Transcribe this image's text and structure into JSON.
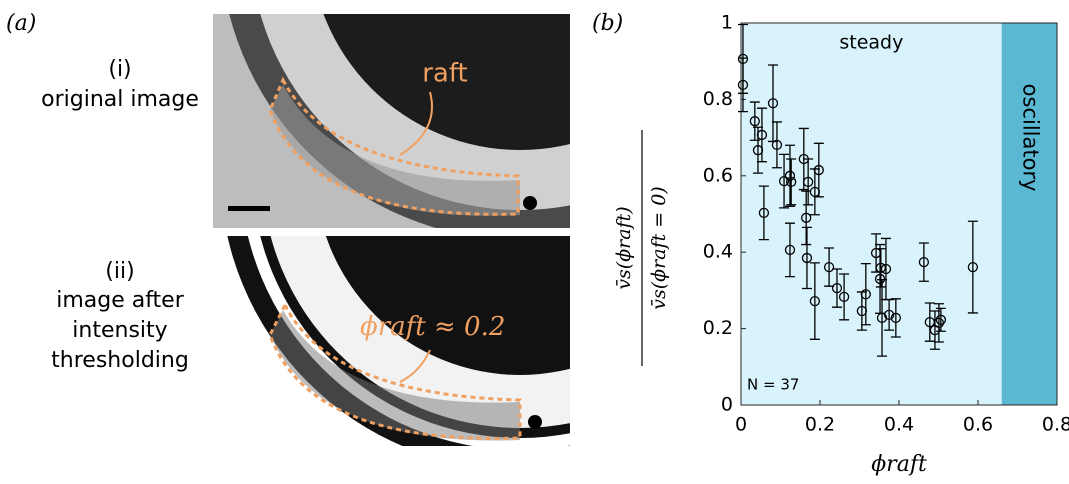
{
  "panel_a": {
    "label": "(a)",
    "sub_i": "(i)",
    "caption_i": "original image",
    "raft_label": "raft",
    "sub_ii": "(ii)",
    "caption_ii": [
      "image after",
      "intensity",
      "thresholding"
    ],
    "phi_label": "ϕraft ≈ 0.2"
  },
  "chart_data": {
    "type": "scatter",
    "panel_label": "(b)",
    "x_label": "ϕraft",
    "y_label": {
      "numerator": "v̄s(ϕraft)",
      "denominator": "v̄s(ϕraft = 0)"
    },
    "annotation": "N = 37",
    "regions": [
      {
        "name": "steady",
        "xlim": [
          0,
          0.66
        ],
        "color": "#d8f3fc"
      },
      {
        "name": "oscillatory",
        "xlim": [
          0.66,
          0.8
        ],
        "color": "#5bb8d2"
      }
    ],
    "x": [
      0.005,
      0.005,
      0.035,
      0.043,
      0.053,
      0.058,
      0.081,
      0.091,
      0.109,
      0.124,
      0.127,
      0.124,
      0.159,
      0.165,
      0.167,
      0.17,
      0.187,
      0.197,
      0.187,
      0.223,
      0.243,
      0.261,
      0.306,
      0.316,
      0.342,
      0.354,
      0.352,
      0.357,
      0.367,
      0.375,
      0.392,
      0.463,
      0.478,
      0.491,
      0.501,
      0.506,
      0.587
    ],
    "values": [
      0.906,
      0.838,
      0.743,
      0.667,
      0.707,
      0.503,
      0.79,
      0.681,
      0.586,
      0.6,
      0.584,
      0.406,
      0.644,
      0.49,
      0.385,
      0.584,
      0.558,
      0.615,
      0.272,
      0.361,
      0.306,
      0.283,
      0.246,
      0.29,
      0.398,
      0.359,
      0.33,
      0.228,
      0.356,
      0.236,
      0.228,
      0.374,
      0.217,
      0.196,
      0.215,
      0.223,
      0.361
    ],
    "errors": [
      0.09,
      0.07,
      0.05,
      0.06,
      0.07,
      0.07,
      0.1,
      0.06,
      0.07,
      0.08,
      0.06,
      0.07,
      0.08,
      0.07,
      0.08,
      0.06,
      0.06,
      0.07,
      0.1,
      0.05,
      0.05,
      0.06,
      0.05,
      0.08,
      0.05,
      0.05,
      0.09,
      0.1,
      0.08,
      0.04,
      0.05,
      0.05,
      0.05,
      0.05,
      0.05,
      0.03,
      0.12
    ],
    "color": "#000000",
    "xlim": [
      0,
      0.8
    ],
    "ylim": [
      0,
      1
    ],
    "xticks": [
      0,
      0.2,
      0.4,
      0.6,
      0.8
    ],
    "yticks": [
      0,
      0.2,
      0.4,
      0.6,
      0.8,
      1
    ]
  }
}
